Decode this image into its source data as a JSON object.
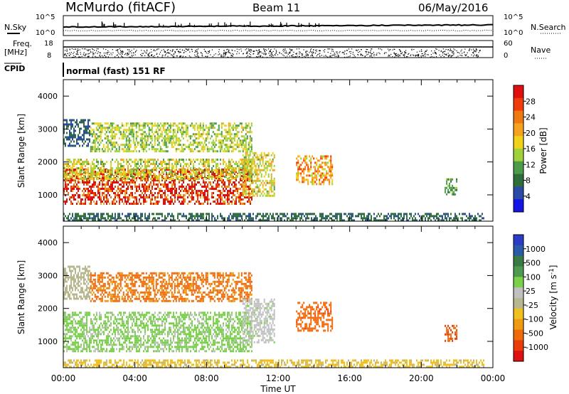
{
  "header": {
    "station": "McMurdo (fitACF)",
    "beam": "Beam 11",
    "date": "06/May/2016"
  },
  "top_panels": {
    "nsky_label": "N.Sky",
    "nsky_ticks": [
      "10^5",
      "10^0"
    ],
    "nsearch_label": "N.Search",
    "nsearch_ticks": [
      "10^5",
      "10^0"
    ],
    "freq_label_1": "Freq.",
    "freq_label_2": "[MHz]",
    "freq_ticks": [
      "18",
      "8"
    ],
    "nave_label": "Nave",
    "nave_ticks": [
      "60",
      "0"
    ],
    "cpid_label": "CPID",
    "cpid_text": "normal (fast) 151 RF"
  },
  "colors": {
    "power_scale": [
      "#1414e6",
      "#2a4aa8",
      "#2f6e3a",
      "#4c9c4c",
      "#9fd23a",
      "#f0d21a",
      "#f5a21e",
      "#f07a10",
      "#f03c0a",
      "#e01010"
    ],
    "velocity_scale": [
      "#2a3cc8",
      "#2a5aa8",
      "#3a7a44",
      "#4f9a4f",
      "#7ad24a",
      "#c0c0c0",
      "#b8b890",
      "#f0c020",
      "#f09a10",
      "#f06a0a",
      "#e83c0a",
      "#e01010"
    ]
  },
  "chart_data": [
    {
      "type": "heatmap",
      "panel": "power",
      "ylabel": "Slant Range [km]",
      "xlabel": "",
      "x_range_hours": [
        0,
        24
      ],
      "ylim": [
        200,
        4500
      ],
      "yticks": [
        "1000",
        "2000",
        "3000",
        "4000"
      ],
      "colorbar_label": "Power [dB]",
      "colorbar_ticks": [
        "4",
        "8",
        "12",
        "16",
        "20",
        "24",
        "28"
      ],
      "colorbar_range": [
        0,
        30
      ],
      "regions": [
        {
          "t0": 0.0,
          "t1": 10.5,
          "r0": 700,
          "r1": 1800,
          "level": 27
        },
        {
          "t0": 0.0,
          "t1": 10.5,
          "r0": 1500,
          "r1": 2100,
          "level": 15
        },
        {
          "t0": 0.0,
          "t1": 1.5,
          "r0": 2500,
          "r1": 3300,
          "level": 6
        },
        {
          "t0": 1.5,
          "t1": 10.5,
          "r0": 2300,
          "r1": 3200,
          "level": 14
        },
        {
          "t0": 10.0,
          "t1": 11.8,
          "r0": 1000,
          "r1": 2300,
          "level": 16
        },
        {
          "t0": 13.0,
          "t1": 15.0,
          "r0": 1300,
          "r1": 2200,
          "level": 20
        },
        {
          "t0": 21.3,
          "t1": 22.0,
          "r0": 1000,
          "r1": 1500,
          "level": 10
        },
        {
          "t0": 0.0,
          "t1": 23.5,
          "r0": 200,
          "r1": 450,
          "level": 7
        }
      ]
    },
    {
      "type": "heatmap",
      "panel": "velocity",
      "ylabel": "Slant Range [km]",
      "xlabel": "Time UT",
      "x_range_hours": [
        0,
        24
      ],
      "xticks": [
        "00:00",
        "04:00",
        "08:00",
        "12:00",
        "16:00",
        "20:00",
        "00:00"
      ],
      "ylim": [
        200,
        4500
      ],
      "yticks": [
        "1000",
        "2000",
        "3000",
        "4000"
      ],
      "colorbar_label": "Velocity [m s^-1]",
      "colorbar_ticks": [
        "1000",
        "500",
        "100",
        "25",
        "-25",
        "-100",
        "-500",
        "-1000"
      ],
      "regions": [
        {
          "t0": 0.0,
          "t1": 10.5,
          "r0": 700,
          "r1": 1900,
          "level": 60
        },
        {
          "t0": 0.0,
          "t1": 1.5,
          "r0": 2300,
          "r1": 3300,
          "level": 0
        },
        {
          "t0": 1.5,
          "t1": 10.5,
          "r0": 2200,
          "r1": 3100,
          "level": -120
        },
        {
          "t0": 10.0,
          "t1": 11.8,
          "r0": 1000,
          "r1": 2300,
          "level": 40
        },
        {
          "t0": 13.0,
          "t1": 15.0,
          "r0": 1300,
          "r1": 2200,
          "level": -200
        },
        {
          "t0": 21.3,
          "t1": 22.0,
          "r0": 1000,
          "r1": 1500,
          "level": -250
        },
        {
          "t0": 0.0,
          "t1": 23.5,
          "r0": 200,
          "r1": 450,
          "level": -30
        }
      ]
    }
  ]
}
